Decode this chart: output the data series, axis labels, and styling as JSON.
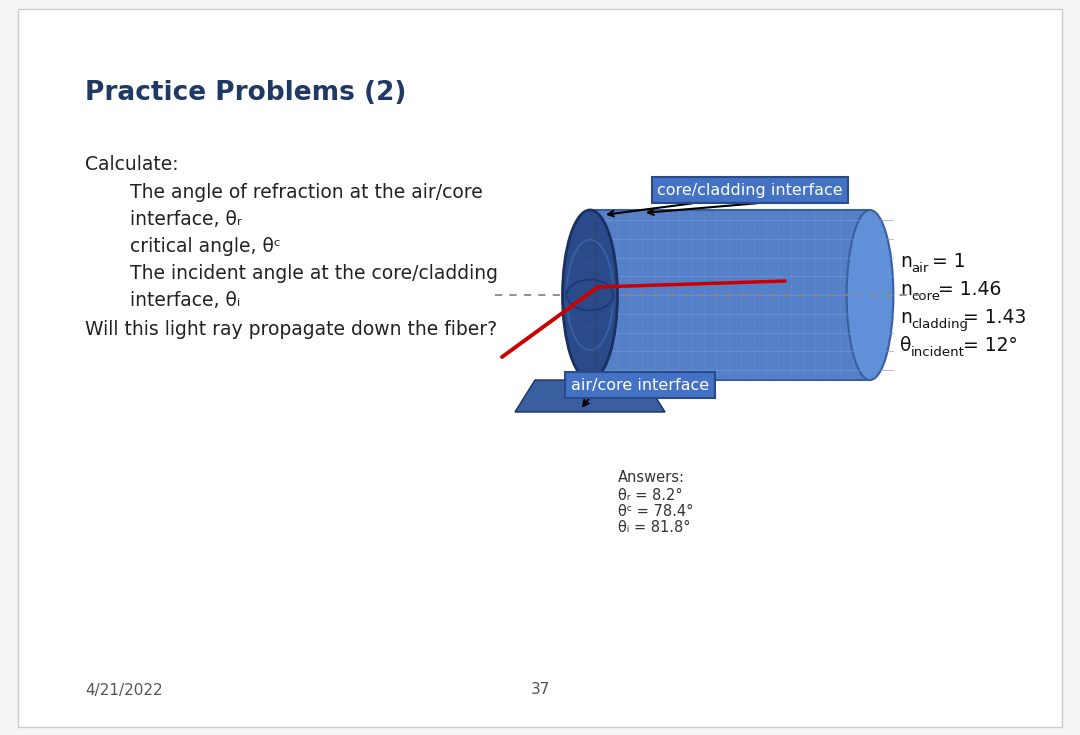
{
  "title": "Practice Problems (2)",
  "slide_bg": "#f5f5f5",
  "content_bg": "#ffffff",
  "title_color": "#1f3864",
  "title_fontsize": 19,
  "text_color": "#222222",
  "calculate_text": "Calculate:",
  "bullet1": "The angle of refraction at the air/core",
  "bullet1b": "interface, θᵣ",
  "bullet2": "critical angle, θᶜ",
  "bullet3": "The incident angle at the core/cladding",
  "bullet3b": "interface, θᵢ",
  "bullet4": "Will this light ray propagate down the fiber?",
  "label_core_cladding": "core/cladding interface",
  "label_air_core": "air/core interface",
  "answers_title": "Answers:",
  "answer1": "θᵣ = 8.2°",
  "answer2": "θᶜ = 78.4°",
  "answer3": "θᵢ = 81.8°",
  "date": "4/21/2022",
  "page": "37",
  "fiber_cladding_color": "#5580c8",
  "fiber_cladding_dark": "#3a5fa0",
  "fiber_face_color": "#2a4a8a",
  "fiber_face_dark": "#1a3070",
  "fiber_right_cap": "#6090d8",
  "fiber_grid_color": "#6a95d8",
  "label_box_color": "#4472c4",
  "label_text_color": "#ffffff",
  "ray_color": "#cc0000",
  "axis_line_color": "#888888",
  "normal_line_color": "#404040"
}
